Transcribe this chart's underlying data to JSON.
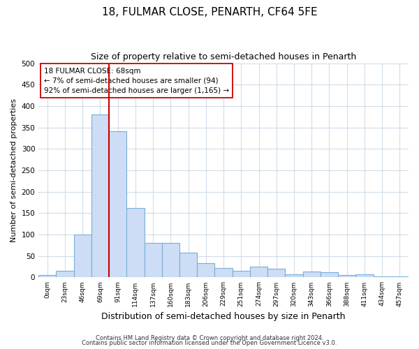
{
  "title": "18, FULMAR CLOSE, PENARTH, CF64 5FE",
  "subtitle": "Size of property relative to semi-detached houses in Penarth",
  "xlabel": "Distribution of semi-detached houses by size in Penarth",
  "ylabel": "Number of semi-detached properties",
  "bin_labels": [
    "0sqm",
    "23sqm",
    "46sqm",
    "69sqm",
    "91sqm",
    "114sqm",
    "137sqm",
    "160sqm",
    "183sqm",
    "206sqm",
    "229sqm",
    "251sqm",
    "274sqm",
    "297sqm",
    "320sqm",
    "343sqm",
    "366sqm",
    "388sqm",
    "411sqm",
    "434sqm",
    "457sqm"
  ],
  "bar_heights": [
    5,
    15,
    100,
    380,
    342,
    162,
    80,
    80,
    57,
    33,
    22,
    15,
    25,
    20,
    8,
    14,
    12,
    5,
    8,
    2,
    2
  ],
  "bar_color": "#ccddf5",
  "bar_edge_color": "#7aaed6",
  "annotation_line1": "18 FULMAR CLOSE: 68sqm",
  "annotation_line2": "← 7% of semi-detached houses are smaller (94)",
  "annotation_line3": "92% of semi-detached houses are larger (1,165) →",
  "vline_x_index": 3,
  "vline_color": "#cc0000",
  "annotation_box_color": "#ffffff",
  "annotation_box_edge_color": "#cc0000",
  "ylim": [
    0,
    500
  ],
  "yticks": [
    0,
    50,
    100,
    150,
    200,
    250,
    300,
    350,
    400,
    450,
    500
  ],
  "footer_line1": "Contains HM Land Registry data © Crown copyright and database right 2024.",
  "footer_line2": "Contains public sector information licensed under the Open Government Licence v3.0.",
  "bg_color": "#ffffff",
  "plot_bg_color": "#ffffff",
  "grid_color": "#d0dce8"
}
